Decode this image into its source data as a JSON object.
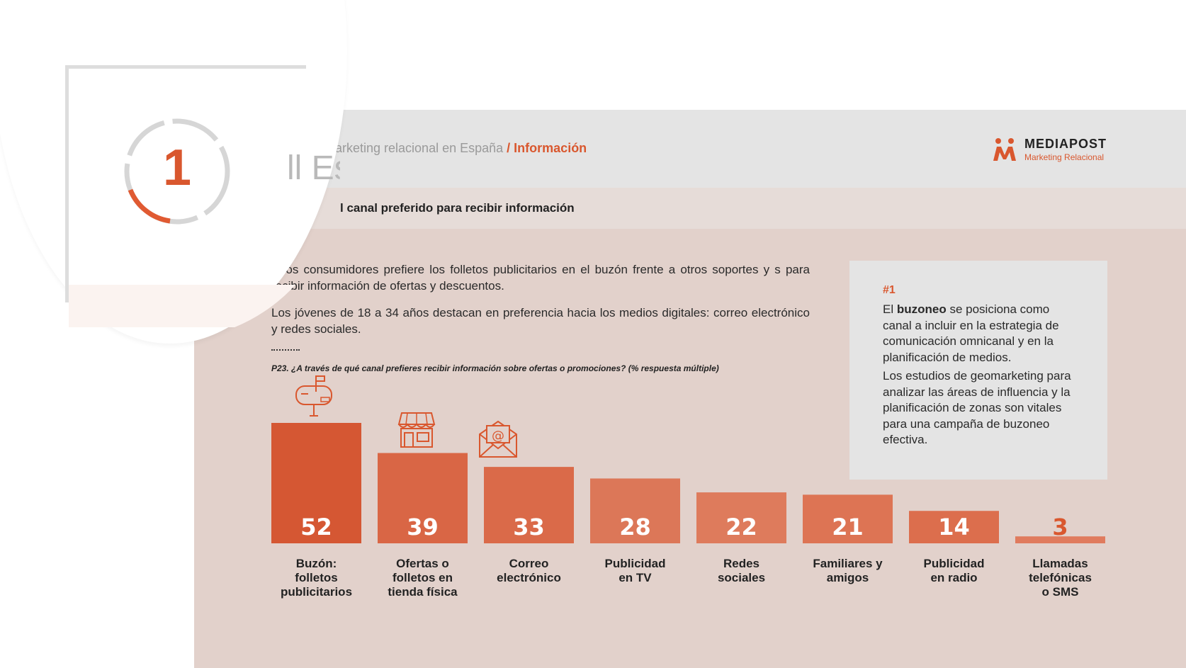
{
  "header": {
    "breadcrumb_main": "marketing relacional en España",
    "breadcrumb_section": "/ Información",
    "logo_name": "MEDIAPOST",
    "logo_tagline": "Marketing Relacional"
  },
  "section_title": "l canal preferido para recibir información",
  "intro": {
    "paragraph1": "e los consumidores prefiere los folletos publicitarios en el buzón frente a otros soportes y s para recibir información de ofertas y descuentos.",
    "paragraph2": "Los jóvenes de 18 a 34 años destacan en preferencia hacia los medios digitales: correo electrónico y redes sociales."
  },
  "question": "P23. ¿A través de qué canal prefieres recibir información sobre ofertas o promociones? (% respuesta múltiple)",
  "callout": {
    "tag": "#1",
    "text1_pre": "El ",
    "text1_bold": "buzoneo",
    "text1_post": " se posiciona como canal a incluir en la estrategia de comunicación omnicanal y en la planificación de medios.",
    "text2": "Los estudios de geomarketing para analizar las áreas de influencia y la planificación de zonas son vitales para una campaña de buzoneo efectiva."
  },
  "magnifier": {
    "number": "1",
    "text": "ll Es"
  },
  "chart_data": {
    "type": "bar",
    "categories": [
      "Buzón: folletos publicitarios",
      "Ofertas o folletos en tienda física",
      "Correo electrónico",
      "Publicidad en TV",
      "Redes sociales",
      "Familiares y amigos",
      "Publicidad en radio",
      "Llamadas telefónicas o SMS"
    ],
    "category_lines": [
      [
        "Buzón:",
        "folletos",
        "publicitarios"
      ],
      [
        "Ofertas o",
        "folletos en",
        "tienda física"
      ],
      [
        "Correo",
        "electrónico"
      ],
      [
        "Publicidad",
        "en TV"
      ],
      [
        "Redes",
        "sociales"
      ],
      [
        "Familiares y",
        "amigos"
      ],
      [
        "Publicidad",
        "en radio"
      ],
      [
        "Llamadas",
        "telefónicas",
        "o SMS"
      ]
    ],
    "values": [
      52,
      39,
      33,
      28,
      22,
      21,
      14,
      3
    ],
    "value_labels": [
      "52",
      "39",
      "33",
      "28",
      "22",
      "21",
      "14",
      "3"
    ],
    "ylim": [
      0,
      52
    ],
    "grid": false,
    "legend": "none",
    "colors": [
      "#d55733",
      "#d96645",
      "#da6a49",
      "#dc7758",
      "#de7b5c",
      "#dd7454",
      "#dc6e4d",
      "#e07b5e"
    ],
    "icons": [
      "mailbox-icon",
      "storefront-icon",
      "email-icon"
    ]
  }
}
